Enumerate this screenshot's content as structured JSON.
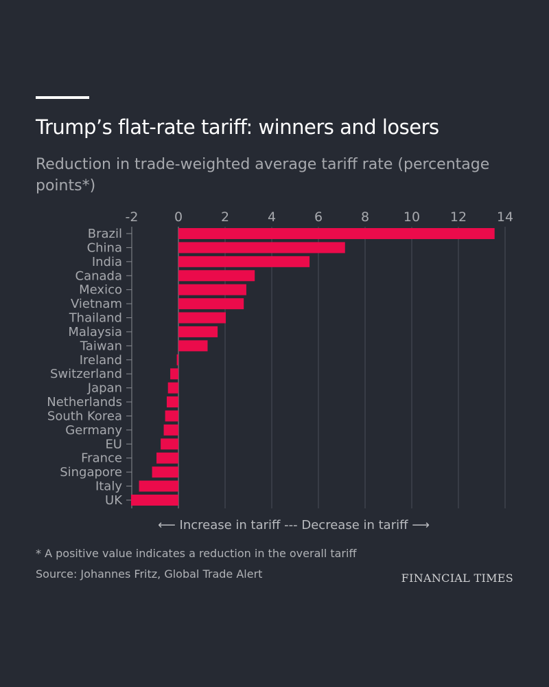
{
  "header": {
    "title": "Trump’s flat-rate tariff: winners and losers",
    "subtitle": "Reduction in trade-weighted average tariff rate (percentage points*)"
  },
  "chart_data": {
    "type": "bar",
    "orientation": "horizontal",
    "categories": [
      "Brazil",
      "China",
      "India",
      "Canada",
      "Mexico",
      "Vietnam",
      "Thailand",
      "Malaysia",
      "Taiwan",
      "Ireland",
      "Switzerland",
      "Japan",
      "Netherlands",
      "South Korea",
      "Germany",
      "EU",
      "France",
      "Singapore",
      "Italy",
      "UK"
    ],
    "values": [
      13.55,
      7.14,
      5.62,
      3.27,
      2.91,
      2.8,
      2.03,
      1.68,
      1.25,
      -0.07,
      -0.35,
      -0.45,
      -0.5,
      -0.57,
      -0.63,
      -0.76,
      -0.94,
      -1.13,
      -1.69,
      -2.03
    ],
    "xlim": [
      -2,
      14
    ],
    "xticks": [
      -2,
      0,
      2,
      4,
      6,
      8,
      10,
      12,
      14
    ],
    "grid": true,
    "bar_color": "#eb0b4b",
    "annotation": "⟵  Increase in tariff --- Decrease in tariff  ⟶"
  },
  "footer": {
    "note": "* A positive value indicates a reduction in the overall tariff",
    "source": "Source: Johannes Fritz, Global Trade Alert",
    "logo": "FINANCIAL TIMES"
  }
}
